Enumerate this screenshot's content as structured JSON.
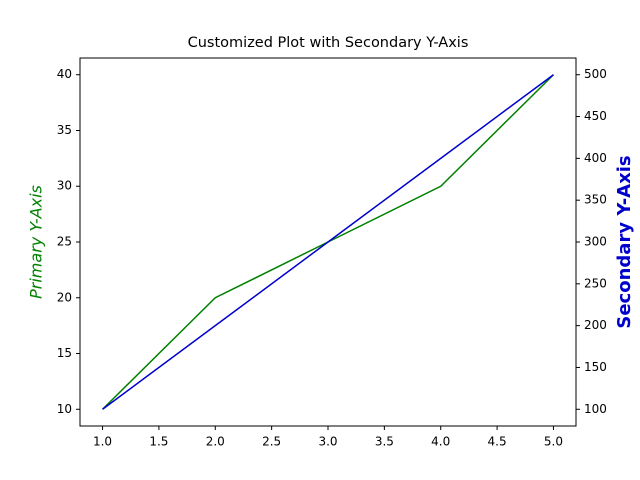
{
  "chart_data": {
    "type": "line",
    "title": "Customized Plot with Secondary Y-Axis",
    "ylabel": "Primary Y-Axis",
    "y2label": "Secondary Y-Axis",
    "x": [
      1,
      2,
      3,
      4,
      5
    ],
    "series": [
      {
        "name": "Primary",
        "color": "#008000",
        "values": [
          10,
          20,
          25,
          30,
          40
        ]
      },
      {
        "name": "Secondary",
        "color": "#0000cd",
        "values": [
          100,
          200,
          300,
          400,
          500
        ],
        "axis": "y2"
      }
    ],
    "xlim": [
      0.8,
      5.2
    ],
    "xticks": [
      {
        "value": 1,
        "label": "1.0"
      },
      1.5,
      {
        "value": 2,
        "label": "2.0"
      },
      2.5,
      {
        "value": 3,
        "label": "3.0"
      },
      3.5,
      {
        "value": 4,
        "label": "4.0"
      },
      4.5,
      {
        "value": 5,
        "label": "5.0"
      }
    ],
    "ylim": [
      8.5,
      41.5
    ],
    "yticks": [
      10,
      15,
      20,
      25,
      30,
      35,
      40
    ],
    "y2lim": [
      80,
      520
    ],
    "y2ticks": [
      100,
      150,
      200,
      250,
      300,
      350,
      400,
      450,
      500
    ]
  }
}
